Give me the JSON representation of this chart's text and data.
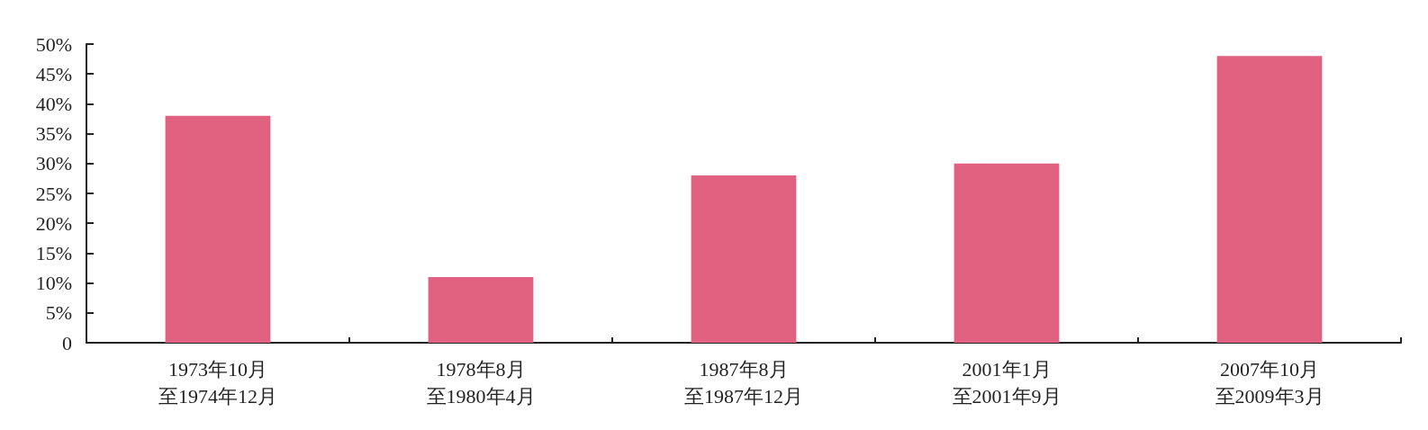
{
  "chart_data": {
    "type": "bar",
    "categories": [
      "1973年10月至1974年12月",
      "1978年8月至1980年4月",
      "1987年8月至1987年12月",
      "2001年1月至2001年9月",
      "2007年10月至2009年3月"
    ],
    "values": [
      38,
      11,
      28,
      30,
      48
    ],
    "color": "#e06180",
    "ylim": [
      0,
      50
    ],
    "yticks": [
      0,
      {
        "value": 5,
        "label": "5%"
      },
      {
        "value": 10,
        "label": "10%"
      },
      {
        "value": 15,
        "label": "15%"
      },
      {
        "value": 20,
        "label": "20%"
      },
      {
        "value": 25,
        "label": "25%"
      },
      {
        "value": 30,
        "label": "30%"
      },
      {
        "value": 35,
        "label": "35%"
      },
      {
        "value": 40,
        "label": "40%"
      },
      {
        "value": 45,
        "label": "45%"
      },
      {
        "value": 50,
        "label": "50%"
      }
    ],
    "grid": false
  }
}
